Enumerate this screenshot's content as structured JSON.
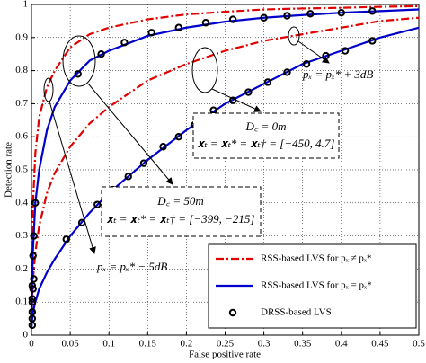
{
  "chart_data": {
    "type": "line",
    "xlabel": "False positive rate",
    "ylabel": "Detection rate",
    "xlim": [
      0,
      0.5
    ],
    "ylim": [
      0,
      1
    ],
    "xticks": [
      0,
      0.05,
      0.1,
      0.15,
      0.2,
      0.25,
      0.3,
      0.35,
      0.4,
      0.45,
      0.5
    ],
    "yticks": [
      0,
      0.1,
      0.2,
      0.3,
      0.4,
      0.5,
      0.6,
      0.7,
      0.8,
      0.9,
      1
    ],
    "grid": true,
    "legend": "lower right",
    "annotations": [
      "pₓ = pₓ* + 3dB",
      "pₓ = pₓ* − 5dB",
      "D꜀ = 0m",
      "𝐱ₜ = 𝐱ₜ* = 𝐱ₜ† = [−450, 4.7]",
      "D꜀ = 50m",
      "𝐱ₜ = 𝐱ₜ* = 𝐱ₜ† = [−399, −215]"
    ],
    "series": [
      {
        "name": "RSS-based LVS for pₓ ≠ pₓ*",
        "color": "#e00000",
        "style": "dash-dot",
        "lines": [
          {
            "x": [
              0,
              0.001,
              0.002,
              0.005,
              0.01,
              0.02,
              0.03,
              0.05,
              0.075,
              0.1,
              0.15,
              0.2,
              0.25,
              0.3,
              0.35,
              0.4,
              0.45,
              0.5
            ],
            "values": [
              0.03,
              0.3,
              0.4,
              0.55,
              0.66,
              0.75,
              0.8,
              0.87,
              0.91,
              0.93,
              0.955,
              0.97,
              0.978,
              0.985,
              0.988,
              0.99,
              0.993,
              0.995
            ]
          },
          {
            "x": [
              0,
              0.001,
              0.002,
              0.005,
              0.01,
              0.02,
              0.03,
              0.05,
              0.075,
              0.1,
              0.15,
              0.2,
              0.25,
              0.3,
              0.35,
              0.4,
              0.45,
              0.5
            ],
            "values": [
              0.03,
              0.12,
              0.17,
              0.25,
              0.33,
              0.43,
              0.49,
              0.57,
              0.64,
              0.69,
              0.77,
              0.82,
              0.86,
              0.89,
              0.91,
              0.93,
              0.95,
              0.96
            ]
          }
        ]
      },
      {
        "name": "RSS-based LVS for pₓ = pₓ*",
        "color": "#0000cc",
        "style": "solid",
        "lines": [
          {
            "x": [
              0,
              0.001,
              0.002,
              0.005,
              0.01,
              0.02,
              0.03,
              0.05,
              0.075,
              0.1,
              0.15,
              0.2,
              0.25,
              0.3,
              0.35,
              0.4,
              0.45,
              0.5
            ],
            "values": [
              0.03,
              0.18,
              0.26,
              0.4,
              0.5,
              0.62,
              0.69,
              0.77,
              0.83,
              0.86,
              0.905,
              0.93,
              0.948,
              0.96,
              0.968,
              0.975,
              0.98,
              0.985
            ]
          },
          {
            "x": [
              0,
              0.001,
              0.002,
              0.005,
              0.01,
              0.02,
              0.03,
              0.05,
              0.075,
              0.1,
              0.15,
              0.2,
              0.25,
              0.3,
              0.35,
              0.4,
              0.45,
              0.5
            ],
            "values": [
              0.02,
              0.05,
              0.07,
              0.1,
              0.14,
              0.19,
              0.23,
              0.3,
              0.37,
              0.43,
              0.53,
              0.62,
              0.7,
              0.76,
              0.82,
              0.86,
              0.9,
              0.93
            ]
          }
        ]
      },
      {
        "name": "DRSS-based LVS",
        "color": "#000000",
        "style": "circle",
        "lines": [
          {
            "x": [
              0.001,
              0.001,
              0.001,
              0.002,
              0.003,
              0.005,
              0.06,
              0.09,
              0.12,
              0.155,
              0.19,
              0.225,
              0.26,
              0.3,
              0.33,
              0.36,
              0.4,
              0.44
            ],
            "values": [
              0.05,
              0.1,
              0.15,
              0.24,
              0.3,
              0.4,
              0.79,
              0.85,
              0.885,
              0.915,
              0.93,
              0.945,
              0.955,
              0.96,
              0.966,
              0.972,
              0.975,
              0.98
            ]
          },
          {
            "x": [
              0.001,
              0.001,
              0.001,
              0.002,
              0.003,
              0.045,
              0.065,
              0.085,
              0.105,
              0.125,
              0.145,
              0.17,
              0.19,
              0.21,
              0.235,
              0.26,
              0.28,
              0.305,
              0.33,
              0.355,
              0.38,
              0.405,
              0.44
            ],
            "values": [
              0.03,
              0.07,
              0.11,
              0.14,
              0.17,
              0.29,
              0.34,
              0.395,
              0.44,
              0.48,
              0.52,
              0.57,
              0.6,
              0.635,
              0.68,
              0.71,
              0.735,
              0.765,
              0.795,
              0.82,
              0.845,
              0.86,
              0.89
            ]
          }
        ]
      }
    ]
  }
}
